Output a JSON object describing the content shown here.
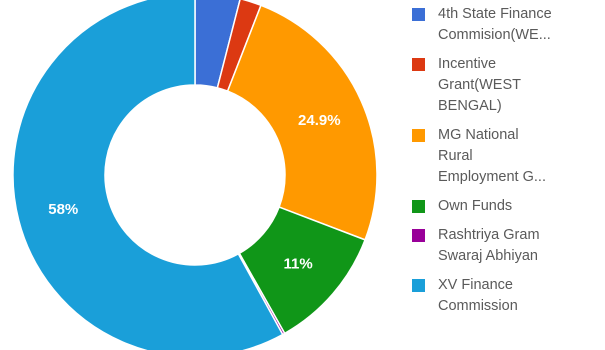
{
  "chart_data": {
    "type": "pie",
    "donut": true,
    "legend_position": "right",
    "slices": [
      {
        "label": "4th State Finance Commision(WE...",
        "legend_text": "4th State Finance\nCommision(WE...",
        "value": 4.0,
        "color": "#3b6fd6",
        "data_label": ""
      },
      {
        "label": "Incentive Grant(WEST BENGAL)",
        "legend_text": "Incentive\nGrant(WEST\nBENGAL)",
        "value": 1.9,
        "color": "#dc3912",
        "data_label": ""
      },
      {
        "label": "MG National Rural Employment G...",
        "legend_text": "MG National\nRural\nEmployment G...",
        "value": 24.9,
        "color": "#ff9900",
        "data_label": "24.9%"
      },
      {
        "label": "Own Funds",
        "legend_text": "Own Funds",
        "value": 11.0,
        "color": "#109618",
        "data_label": "11%"
      },
      {
        "label": "Rashtriya Gram Swaraj Abhiyan",
        "legend_text": "Rashtriya Gram\nSwaraj Abhiyan",
        "value": 0.2,
        "color": "#990099",
        "data_label": ""
      },
      {
        "label": "XV Finance Commission",
        "legend_text": "XV Finance\nCommission",
        "value": 58.0,
        "color": "#1a9fd9",
        "data_label": "58%"
      }
    ]
  }
}
